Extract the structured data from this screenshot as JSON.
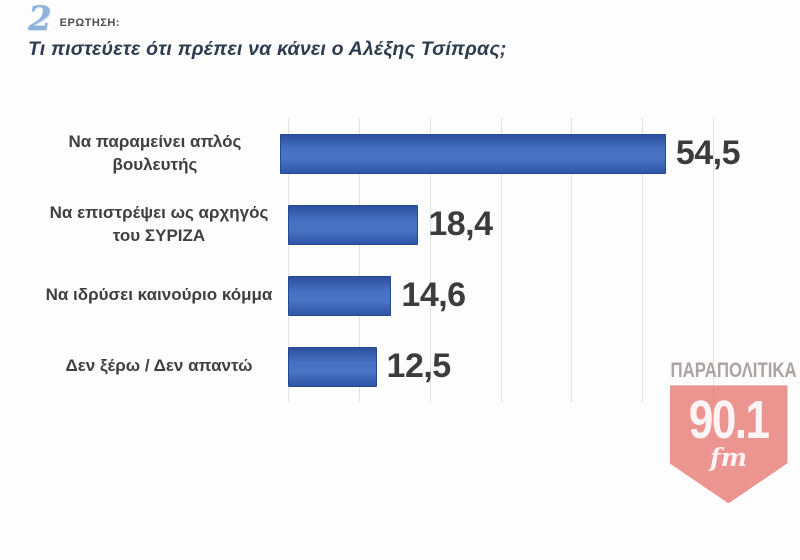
{
  "header": {
    "question_number": "2",
    "question_label": "ΕΡΩΤΗΣΗ:",
    "title": "Τι πιστεύετε ότι πρέπει να κάνει ο Αλέξης Τσίπρας;"
  },
  "chart_data": {
    "type": "bar",
    "orientation": "horizontal",
    "title": "Τι πιστεύετε ότι πρέπει να κάνει ο Αλέξης Τσίπρας;",
    "categories": [
      "Να παραμείνει απλός βουλευτής",
      "Να επιστρέψει ως αρχηγός του ΣΥΡΙΖΑ",
      "Να ιδρύσει καινούριο κόμμα",
      "Δεν ξέρω / Δεν απαντώ"
    ],
    "values": [
      54.5,
      18.4,
      14.6,
      12.5
    ],
    "value_labels": [
      "54,5",
      "18,4",
      "14,6",
      "12,5"
    ],
    "xlim": [
      0,
      60
    ],
    "gridline_step": 10,
    "grid": true,
    "legend": false,
    "xlabel": "",
    "ylabel": "",
    "bar_color": "#3a64b6",
    "bar_border_color": "#274993",
    "gridline_color": "#e2e2e2",
    "value_text_color": "#3c3c3c"
  },
  "watermark": {
    "brand": "ΠΑΡΑΠΟΛΙΤΙΚΑ",
    "frequency": "90.1",
    "band": "fm",
    "shield_color": "#e8827e"
  }
}
